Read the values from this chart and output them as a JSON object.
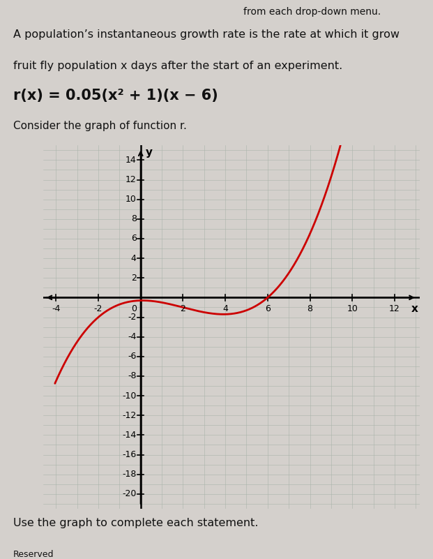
{
  "title_line1": "A population’s instantaneous growth rate is the rate at which it grow",
  "title_line2": "fruit fly population x days after the start of an experiment.",
  "formula_text": "r(x) = 0.05(x² + 1)(x − 6)",
  "consider_text": "Consider the graph of function r.",
  "bottom_text": "Use the graph to complete each statement.",
  "reserved_text": "Reserved",
  "top_text": "from each drop-down menu.",
  "curve_color": "#cc0000",
  "curve_linewidth": 2.0,
  "xlim": [
    -4.6,
    13.2
  ],
  "ylim": [
    -21.5,
    15.5
  ],
  "xlabel": "x",
  "ylabel": "y",
  "grid_color": "#aab4aa",
  "background_color": "#bfc9bf",
  "page_background": "#d4d0cc",
  "axes_color": "#000000",
  "text_color": "#111111",
  "font_size_top": 10,
  "font_size_text": 11.5,
  "font_size_formula": 15,
  "font_size_ticks": 9,
  "font_size_consider": 11
}
